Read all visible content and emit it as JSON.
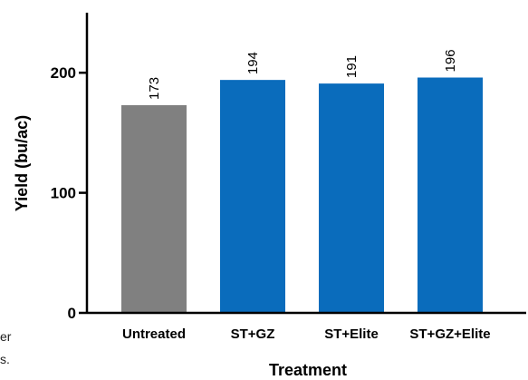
{
  "chart_data": {
    "type": "bar",
    "categories": [
      "Untreated",
      "ST+GZ",
      "ST+Elite",
      "ST+GZ+Elite"
    ],
    "values": [
      173,
      194,
      191,
      196
    ],
    "data_labels": [
      "173",
      "194",
      "191",
      "196"
    ],
    "colors": [
      "#808080",
      "#0a6cbc",
      "#0a6cbc",
      "#0a6cbc"
    ],
    "ylim": [
      0,
      250
    ],
    "yticks": [
      0,
      100,
      200
    ],
    "ytick_labels": [
      "0",
      "100",
      "200"
    ],
    "xlabel": "Treatment",
    "ylabel": "Yield (bu/ac)",
    "grid": false,
    "legend": "none"
  },
  "edge_text": {
    "line1": "er",
    "line2": "s."
  }
}
